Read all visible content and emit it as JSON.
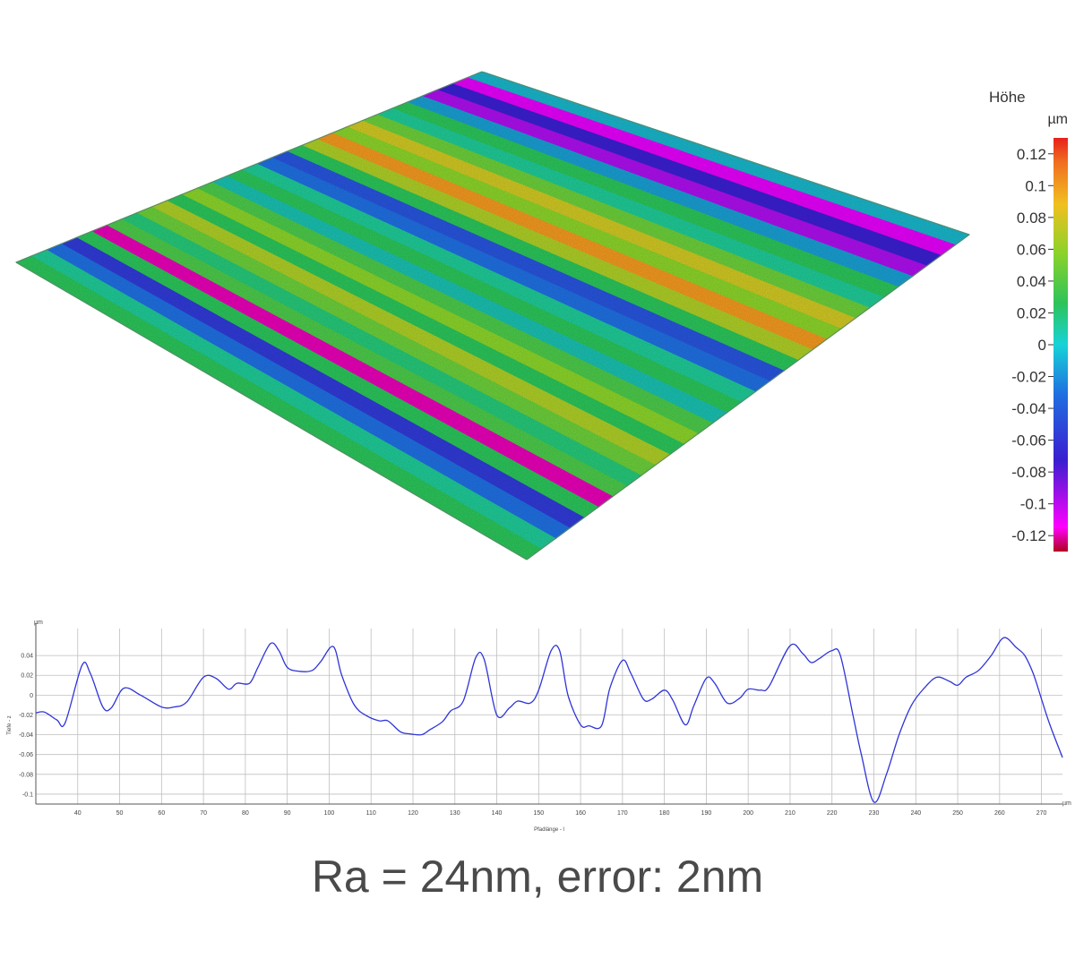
{
  "colors": {
    "line": "#2f34d8",
    "grid": "#bfbfbf",
    "axis": "#555555",
    "caption": "#4a4a4a"
  },
  "surface_bands": [
    {
      "value": -0.02
    },
    {
      "value": -0.11
    },
    {
      "value": -0.08
    },
    {
      "value": -0.1
    },
    {
      "value": -0.03
    },
    {
      "value": 0.02
    },
    {
      "value": 0.0
    },
    {
      "value": 0.04
    },
    {
      "value": 0.07
    },
    {
      "value": 0.05
    },
    {
      "value": 0.09
    },
    {
      "value": 0.06
    },
    {
      "value": 0.02
    },
    {
      "value": -0.06
    },
    {
      "value": -0.05
    },
    {
      "value": 0.0
    },
    {
      "value": 0.02
    },
    {
      "value": -0.01
    },
    {
      "value": 0.03
    },
    {
      "value": 0.05
    },
    {
      "value": 0.02
    },
    {
      "value": 0.06
    },
    {
      "value": 0.04
    },
    {
      "value": 0.01
    },
    {
      "value": 0.03
    },
    {
      "value": -0.12
    },
    {
      "value": 0.02
    },
    {
      "value": -0.07
    },
    {
      "value": -0.05
    },
    {
      "value": 0.0
    },
    {
      "value": 0.02
    }
  ],
  "colorbar": {
    "title": "Höhe",
    "unit": "µm",
    "ticks": [
      "0.12",
      "0.1",
      "0.08",
      "0.06",
      "0.04",
      "0.02",
      "0",
      "-0.02",
      "-0.04",
      "-0.06",
      "-0.08",
      "-0.1",
      "-0.12"
    ],
    "min": -0.13,
    "max": 0.13
  },
  "chart_data": {
    "type": "line",
    "xlabel": "Pfadlänge - l",
    "ylabel": "Tiefe - z",
    "x_unit": "µm",
    "y_unit": "µm",
    "xlim": [
      30,
      275
    ],
    "ylim": [
      -0.11,
      0.06
    ],
    "x_ticks": [
      "40",
      "50",
      "60",
      "70",
      "80",
      "90",
      "100",
      "110",
      "120",
      "130",
      "140",
      "150",
      "160",
      "170",
      "180",
      "190",
      "200",
      "210",
      "220",
      "230",
      "240",
      "250",
      "260",
      "270"
    ],
    "y_ticks": [
      "0.04",
      "0.02",
      "0",
      "-0.02",
      "-0.04",
      "-0.06",
      "-0.08",
      "-0.1"
    ],
    "series": [
      {
        "x": [
          30,
          32,
          35,
          37,
          41,
          43,
          46,
          48,
          51,
          55,
          60,
          63,
          66,
          70,
          73,
          76,
          78,
          81,
          83,
          86,
          88,
          90,
          93,
          96,
          98,
          101,
          103,
          106,
          109,
          112,
          114,
          117,
          119,
          122,
          124,
          127,
          129,
          132,
          135,
          137,
          140,
          143,
          145,
          148,
          150,
          153,
          155,
          157,
          160,
          162,
          165,
          167,
          170,
          172,
          175,
          177,
          180,
          182,
          185,
          187,
          190,
          192,
          195,
          198,
          200,
          203,
          205,
          210,
          213,
          215,
          217,
          220,
          222,
          225,
          227,
          230,
          233,
          236,
          239,
          242,
          245,
          248,
          250,
          252,
          255,
          258,
          261,
          264,
          266,
          268,
          270,
          272,
          275
        ],
        "y": [
          -0.018,
          -0.017,
          -0.025,
          -0.028,
          0.03,
          0.022,
          -0.012,
          -0.013,
          0.007,
          0.0,
          -0.012,
          -0.012,
          -0.007,
          0.018,
          0.017,
          0.006,
          0.012,
          0.012,
          0.028,
          0.052,
          0.045,
          0.028,
          0.024,
          0.025,
          0.034,
          0.049,
          0.02,
          -0.01,
          -0.021,
          -0.026,
          -0.026,
          -0.037,
          -0.039,
          -0.04,
          -0.035,
          -0.027,
          -0.016,
          -0.006,
          0.038,
          0.036,
          -0.02,
          -0.013,
          -0.006,
          -0.008,
          0.005,
          0.045,
          0.045,
          0.0,
          -0.03,
          -0.031,
          -0.031,
          0.007,
          0.035,
          0.022,
          -0.004,
          -0.004,
          0.005,
          -0.005,
          -0.03,
          -0.011,
          0.017,
          0.012,
          -0.008,
          -0.003,
          0.006,
          0.005,
          0.009,
          0.05,
          0.042,
          0.033,
          0.037,
          0.045,
          0.04,
          -0.02,
          -0.06,
          -0.108,
          -0.08,
          -0.04,
          -0.01,
          0.007,
          0.018,
          0.014,
          0.01,
          0.018,
          0.025,
          0.04,
          0.058,
          0.048,
          0.04,
          0.022,
          -0.004,
          -0.03,
          -0.063
        ]
      }
    ]
  },
  "caption": "Ra = 24nm, error: 2nm"
}
